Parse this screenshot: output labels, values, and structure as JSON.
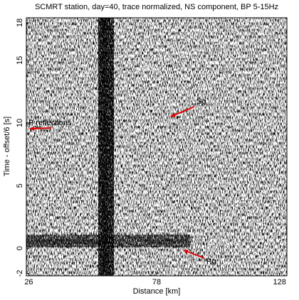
{
  "chart_data": {
    "type": "record-section",
    "title": "SCMRT station, day=40, trace normalized, NS component, BP 5-15Hz",
    "x_label": "Distance [km]",
    "y_label": "Time - offset/6 [s]",
    "xlim": [
      25,
      131
    ],
    "ylim": [
      -2.2,
      18.4
    ],
    "xticks": [
      26,
      78,
      128
    ],
    "yticks": [
      -2,
      0,
      5,
      10,
      15,
      18
    ],
    "annotations": [
      "Sg",
      "P reflections",
      "Pg"
    ],
    "annotation_color": "#e00000"
  }
}
